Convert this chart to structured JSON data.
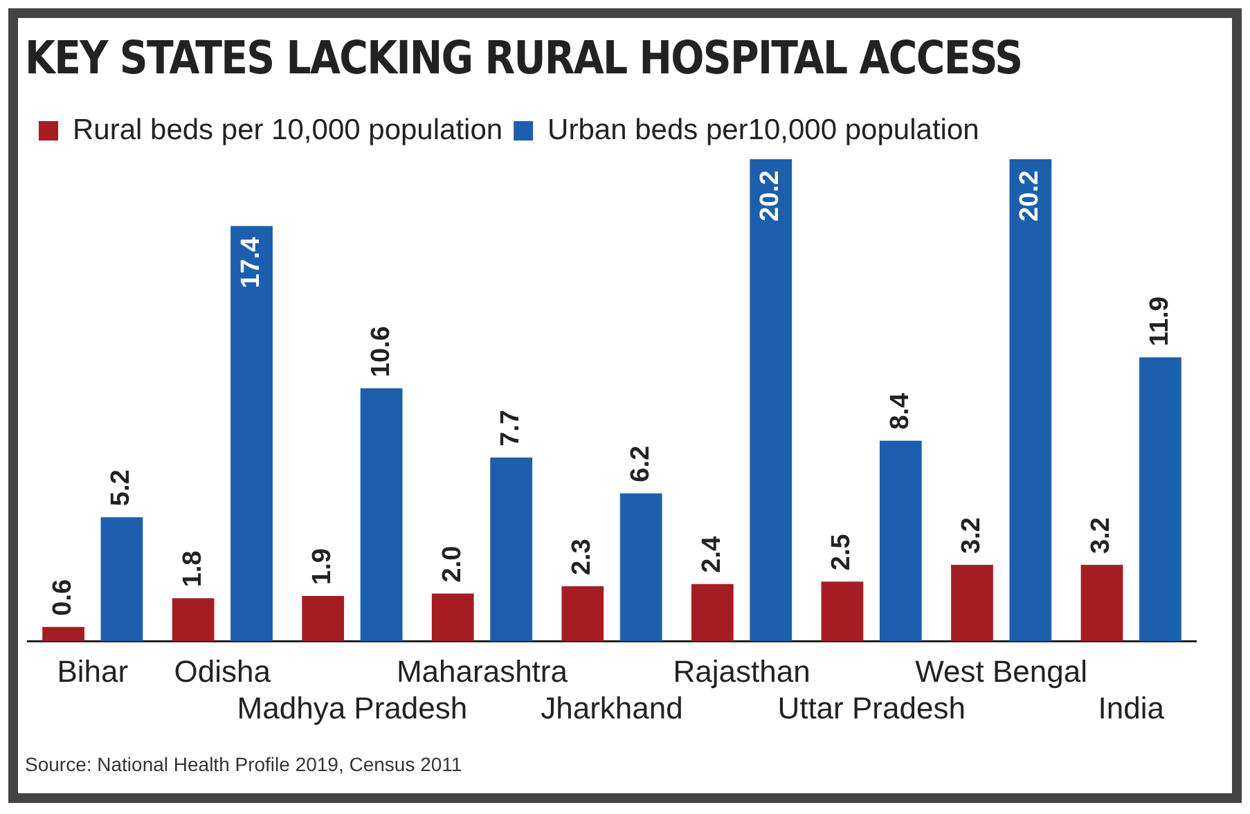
{
  "chart_data": {
    "type": "bar",
    "title": "KEY STATES LACKING RURAL HOSPITAL ACCESS",
    "categories": [
      "Bihar",
      "Odisha",
      "Madhya Pradesh",
      "Maharashtra",
      "Jharkhand",
      "Rajasthan",
      "Uttar Pradesh",
      "West Bengal",
      "India"
    ],
    "series": [
      {
        "name": "Rural beds per 10,000 population",
        "color": "#a51d22",
        "values": [
          0.6,
          1.8,
          1.9,
          2.0,
          2.3,
          2.4,
          2.5,
          3.2,
          3.2
        ],
        "value_labels": [
          "0.6",
          "1.8",
          "1.9",
          "2.0",
          "2.3",
          "2.4",
          "2.5",
          "3.2",
          "3.2"
        ]
      },
      {
        "name": "Urban beds per10,000 population",
        "color": "#1c60ad",
        "values": [
          5.2,
          17.4,
          10.6,
          7.7,
          6.2,
          20.2,
          8.4,
          20.2,
          11.9
        ],
        "value_labels": [
          "5.2",
          "17.4",
          "10.6",
          "7.7",
          "6.2",
          "20.2",
          "8.4",
          "20.2",
          "11.9"
        ]
      }
    ],
    "grid": false,
    "legend": "top left",
    "annotations": [
      "Source: National Health Profile 2019, Census 2011"
    ]
  }
}
